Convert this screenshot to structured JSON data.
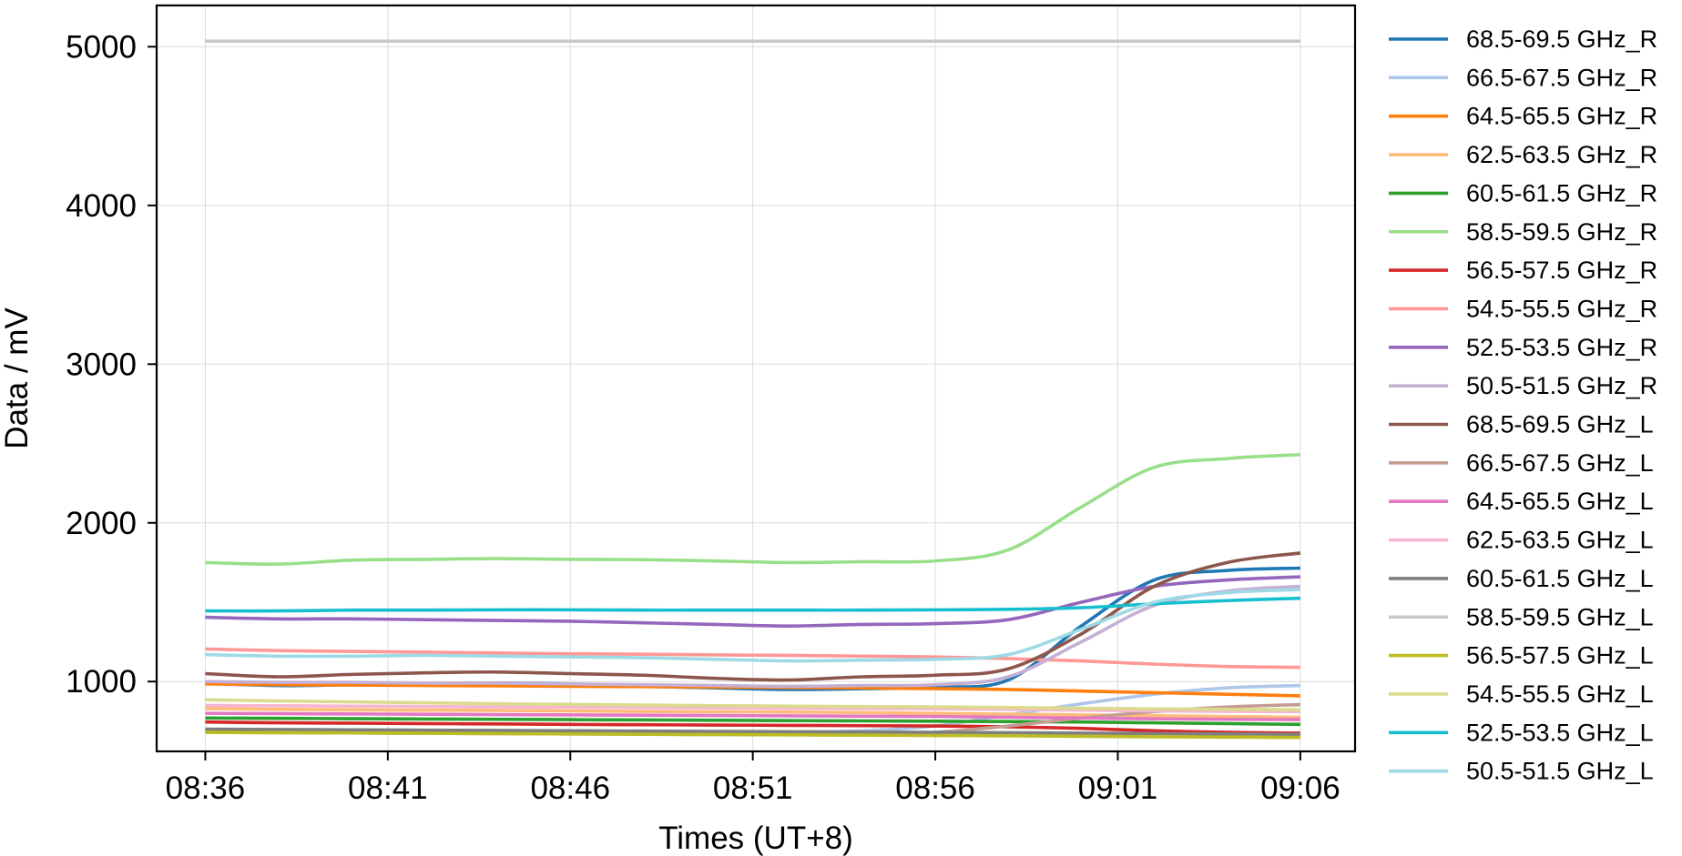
{
  "chart_data": {
    "type": "line",
    "xlabel": "Times (UT+8)",
    "ylabel": "Data / mV",
    "x": [
      "08:36",
      "08:38",
      "08:40",
      "08:42",
      "08:44",
      "08:46",
      "08:48",
      "08:50",
      "08:52",
      "08:54",
      "08:56",
      "08:58",
      "09:00",
      "09:02",
      "09:04",
      "09:06"
    ],
    "xticks": [
      "08:36",
      "08:41",
      "08:46",
      "08:51",
      "08:56",
      "09:01",
      "09:06"
    ],
    "xlim": [
      "08:34:40",
      "09:07:30"
    ],
    "ylim": [
      560,
      5260
    ],
    "yticks": [
      1000,
      2000,
      3000,
      4000,
      5000
    ],
    "grid": true,
    "legend_position": "outside-right",
    "series": [
      {
        "name": "68.5-69.5 GHz_R",
        "color": "#1f77b4",
        "values": [
          990,
          975,
          980,
          985,
          990,
          985,
          970,
          960,
          950,
          955,
          965,
          1010,
          1350,
          1640,
          1700,
          1715
        ]
      },
      {
        "name": "66.5-67.5 GHz_R",
        "color": "#aec7e8",
        "values": [
          695,
          690,
          688,
          686,
          684,
          682,
          680,
          678,
          680,
          690,
          720,
          790,
          860,
          920,
          960,
          975
        ]
      },
      {
        "name": "64.5-65.5 GHz_R",
        "color": "#ff7f0e",
        "values": [
          985,
          980,
          978,
          975,
          973,
          970,
          968,
          965,
          962,
          960,
          955,
          950,
          940,
          930,
          920,
          910
        ]
      },
      {
        "name": "62.5-63.5 GHz_R",
        "color": "#ffbb78",
        "values": [
          830,
          825,
          822,
          820,
          818,
          815,
          812,
          810,
          808,
          805,
          800,
          795,
          790,
          785,
          780,
          775
        ]
      },
      {
        "name": "60.5-61.5 GHz_R",
        "color": "#2ca02c",
        "values": [
          770,
          768,
          766,
          764,
          762,
          760,
          758,
          756,
          754,
          752,
          750,
          748,
          745,
          740,
          735,
          730
        ]
      },
      {
        "name": "58.5-59.5 GHz_R",
        "color": "#98df8a",
        "values": [
          1750,
          1740,
          1765,
          1770,
          1775,
          1770,
          1768,
          1760,
          1750,
          1755,
          1760,
          1830,
          2100,
          2350,
          2405,
          2430
        ]
      },
      {
        "name": "56.5-57.5 GHz_R",
        "color": "#d62728",
        "values": [
          745,
          740,
          738,
          735,
          733,
          730,
          728,
          726,
          724,
          722,
          720,
          715,
          705,
          690,
          680,
          675
        ]
      },
      {
        "name": "54.5-55.5 GHz_R",
        "color": "#ff9896",
        "values": [
          1205,
          1195,
          1190,
          1185,
          1180,
          1175,
          1172,
          1168,
          1165,
          1160,
          1155,
          1145,
          1130,
          1110,
          1095,
          1090
        ]
      },
      {
        "name": "52.5-53.5 GHz_R",
        "color": "#9467bd",
        "values": [
          1405,
          1395,
          1395,
          1390,
          1385,
          1380,
          1370,
          1360,
          1350,
          1360,
          1365,
          1390,
          1500,
          1600,
          1640,
          1660
        ]
      },
      {
        "name": "50.5-51.5 GHz_R",
        "color": "#c5b0d5",
        "values": [
          1000,
          995,
          995,
          990,
          990,
          985,
          980,
          975,
          970,
          975,
          980,
          1030,
          1250,
          1480,
          1570,
          1600
        ]
      },
      {
        "name": "68.5-69.5 GHz_L",
        "color": "#8c564b",
        "values": [
          1050,
          1030,
          1045,
          1055,
          1060,
          1050,
          1040,
          1020,
          1010,
          1030,
          1040,
          1080,
          1300,
          1600,
          1750,
          1810
        ]
      },
      {
        "name": "66.5-67.5 GHz_L",
        "color": "#c49c94",
        "values": [
          680,
          678,
          676,
          674,
          672,
          670,
          668,
          666,
          665,
          668,
          680,
          720,
          770,
          810,
          840,
          855
        ]
      },
      {
        "name": "64.5-65.5 GHz_L",
        "color": "#e377c2",
        "values": [
          800,
          798,
          796,
          794,
          792,
          790,
          788,
          786,
          784,
          782,
          780,
          775,
          770,
          765,
          762,
          760
        ]
      },
      {
        "name": "62.5-63.5 GHz_L",
        "color": "#f7b6d2",
        "values": [
          850,
          847,
          845,
          843,
          840,
          838,
          836,
          834,
          832,
          830,
          828,
          825,
          820,
          815,
          812,
          810
        ]
      },
      {
        "name": "60.5-61.5 GHz_L",
        "color": "#7f7f7f",
        "values": [
          700,
          698,
          696,
          694,
          692,
          690,
          688,
          686,
          684,
          682,
          680,
          678,
          675,
          672,
          670,
          668
        ]
      },
      {
        "name": "58.5-59.5 GHz_L",
        "color": "#c7c7c7",
        "values": [
          5035,
          5035,
          5035,
          5035,
          5035,
          5035,
          5035,
          5035,
          5035,
          5035,
          5035,
          5035,
          5035,
          5035,
          5035,
          5035
        ]
      },
      {
        "name": "56.5-57.5 GHz_L",
        "color": "#bcbd22",
        "values": [
          680,
          678,
          676,
          674,
          672,
          670,
          668,
          666,
          664,
          662,
          660,
          658,
          655,
          652,
          650,
          648
        ]
      },
      {
        "name": "54.5-55.5 GHz_L",
        "color": "#dbdb8d",
        "values": [
          885,
          878,
          872,
          866,
          860,
          856,
          852,
          848,
          845,
          842,
          840,
          836,
          832,
          828,
          825,
          822
        ]
      },
      {
        "name": "52.5-53.5 GHz_L",
        "color": "#17becf",
        "values": [
          1445,
          1445,
          1450,
          1450,
          1452,
          1452,
          1450,
          1450,
          1450,
          1450,
          1452,
          1455,
          1465,
          1490,
          1510,
          1525
        ]
      },
      {
        "name": "50.5-51.5 GHz_L",
        "color": "#9edae5",
        "values": [
          1170,
          1160,
          1160,
          1165,
          1160,
          1155,
          1150,
          1140,
          1130,
          1135,
          1140,
          1170,
          1330,
          1500,
          1560,
          1580
        ]
      }
    ]
  }
}
